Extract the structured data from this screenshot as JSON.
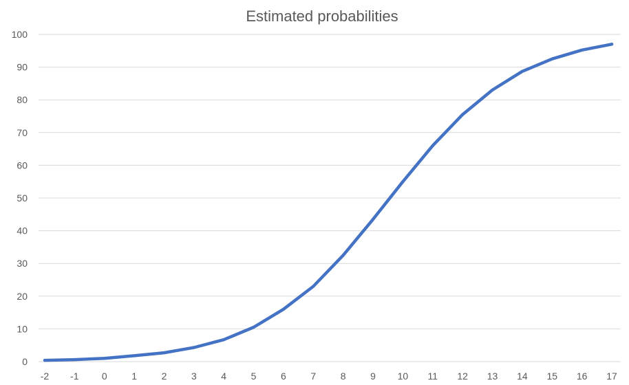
{
  "chart_data": {
    "type": "line",
    "title": "Estimated probabilities",
    "xlabel": "",
    "ylabel": "",
    "x": [
      -2,
      -1,
      0,
      1,
      2,
      3,
      4,
      5,
      6,
      7,
      8,
      9,
      10,
      11,
      12,
      13,
      14,
      15,
      16,
      17
    ],
    "x_tick_labels": [
      "-2",
      "-1",
      "0",
      "1",
      "2",
      "3",
      "4",
      "5",
      "6",
      "7",
      "8",
      "9",
      "10",
      "11",
      "12",
      "13",
      "14",
      "15",
      "16",
      "17"
    ],
    "y_tick_labels": [
      "0",
      "10",
      "20",
      "30",
      "40",
      "50",
      "60",
      "70",
      "80",
      "90",
      "100"
    ],
    "ylim": [
      0,
      100
    ],
    "grid": true,
    "legend": "none",
    "series": [
      {
        "color": "#4472c4",
        "values": [
          0.4,
          0.6,
          1.0,
          1.8,
          2.7,
          4.3,
          6.7,
          10.5,
          16.0,
          23.0,
          32.5,
          43.5,
          55.0,
          66.0,
          75.5,
          83.0,
          88.7,
          92.5,
          95.2,
          97.0
        ]
      }
    ]
  }
}
